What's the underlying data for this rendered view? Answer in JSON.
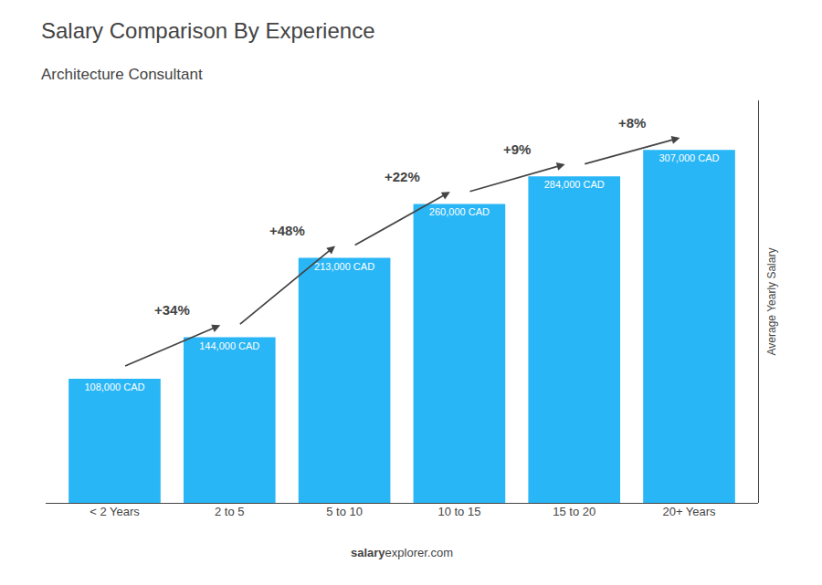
{
  "chart_data": {
    "type": "bar",
    "title": "Salary Comparison By Experience",
    "subtitle": "Architecture Consultant",
    "ylabel": "Average Yearly Salary",
    "categories": [
      "< 2 Years",
      "2 to 5",
      "5 to 10",
      "10 to 15",
      "15 to 20",
      "20+ Years"
    ],
    "values": [
      108000,
      144000,
      213000,
      260000,
      284000,
      307000
    ],
    "value_labels": [
      "108,000 CAD",
      "144,000 CAD",
      "213,000 CAD",
      "260,000 CAD",
      "284,000 CAD",
      "307,000 CAD"
    ],
    "data_labels": true,
    "color": "#29B6F6",
    "ylim": [
      0,
      350000
    ],
    "tick_labels": "x",
    "grid": false,
    "annotations": [
      "+34%",
      "+48%",
      "+22%",
      "+9%",
      "+8%"
    ],
    "footer": [
      "salary",
      "explorer.com"
    ]
  }
}
